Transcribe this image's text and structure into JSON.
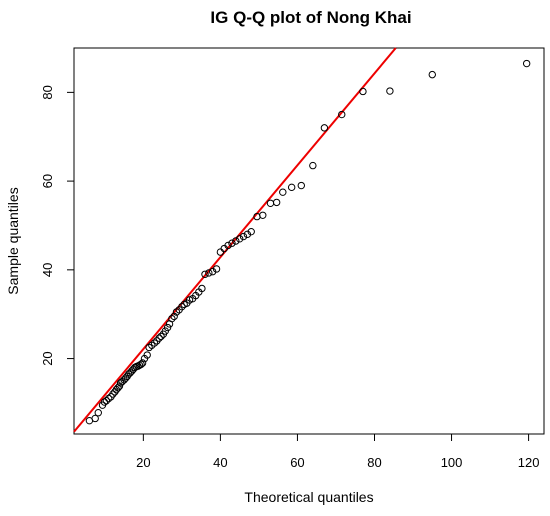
{
  "chart_data": {
    "type": "scatter",
    "title": "IG Q-Q plot of  Nong Khai",
    "xlabel": "Theoretical quantiles",
    "ylabel": "Sample quantiles",
    "xlim": [
      2,
      124
    ],
    "ylim": [
      3,
      90
    ],
    "x_ticks": [
      20,
      40,
      60,
      80,
      100,
      120
    ],
    "y_ticks": [
      20,
      40,
      60,
      80
    ],
    "grid": false,
    "legend": "none",
    "marker": "open-circle",
    "marker_color": "#000000",
    "reference_line": {
      "color": "#ee0000",
      "start": [
        2,
        3.5
      ],
      "end": [
        100,
        105
      ]
    },
    "points": [
      [
        6,
        6
      ],
      [
        7.5,
        6.5
      ],
      [
        8.3,
        7.8
      ],
      [
        9.4,
        9.5
      ],
      [
        9.9,
        10.2
      ],
      [
        10.4,
        10.5
      ],
      [
        11.0,
        11.0
      ],
      [
        11.6,
        11.4
      ],
      [
        12.1,
        12.0
      ],
      [
        12.6,
        12.5
      ],
      [
        13.0,
        13.0
      ],
      [
        13.4,
        13.4
      ],
      [
        13.8,
        13.8
      ],
      [
        14.1,
        14.5
      ],
      [
        14.5,
        14.8
      ],
      [
        15.0,
        15.2
      ],
      [
        15.4,
        15.6
      ],
      [
        15.8,
        16.0
      ],
      [
        16.2,
        16.5
      ],
      [
        16.6,
        16.8
      ],
      [
        17.0,
        17.2
      ],
      [
        17.4,
        17.6
      ],
      [
        17.8,
        18.0
      ],
      [
        18.2,
        18.2
      ],
      [
        18.6,
        18.3
      ],
      [
        19.0,
        18.5
      ],
      [
        19.4,
        18.7
      ],
      [
        19.8,
        19.0
      ],
      [
        20.3,
        20.0
      ],
      [
        21.0,
        20.8
      ],
      [
        21.5,
        22.5
      ],
      [
        22.2,
        23.0
      ],
      [
        22.9,
        23.5
      ],
      [
        23.5,
        24.0
      ],
      [
        24.1,
        24.6
      ],
      [
        24.6,
        25.0
      ],
      [
        25.2,
        25.5
      ],
      [
        25.7,
        26.2
      ],
      [
        26.3,
        27.0
      ],
      [
        26.8,
        27.8
      ],
      [
        27.4,
        29.0
      ],
      [
        28.0,
        29.5
      ],
      [
        28.6,
        30.5
      ],
      [
        29.3,
        31.0
      ],
      [
        30.0,
        31.7
      ],
      [
        30.6,
        32.2
      ],
      [
        31.3,
        32.5
      ],
      [
        32.0,
        33.2
      ],
      [
        32.8,
        33.5
      ],
      [
        33.6,
        34.2
      ],
      [
        34.4,
        35.0
      ],
      [
        35.2,
        35.8
      ],
      [
        36.0,
        39.0
      ],
      [
        37.0,
        39.3
      ],
      [
        38.0,
        39.6
      ],
      [
        39.0,
        40.2
      ],
      [
        40.0,
        44.0
      ],
      [
        41.0,
        44.8
      ],
      [
        42.0,
        45.5
      ],
      [
        43.0,
        46.0
      ],
      [
        44.0,
        46.5
      ],
      [
        45.0,
        47.0
      ],
      [
        46.0,
        47.5
      ],
      [
        47.0,
        48.0
      ],
      [
        48.0,
        48.6
      ],
      [
        49.5,
        52.0
      ],
      [
        51.0,
        52.3
      ],
      [
        53.0,
        55.0
      ],
      [
        54.6,
        55.2
      ],
      [
        56.2,
        57.5
      ],
      [
        58.5,
        58.6
      ],
      [
        61.0,
        59.0
      ],
      [
        64.0,
        63.5
      ],
      [
        67.0,
        72.0
      ],
      [
        71.5,
        75.0
      ],
      [
        77.0,
        80.2
      ],
      [
        84.0,
        80.3
      ],
      [
        95.0,
        84.0
      ],
      [
        119.5,
        86.5
      ]
    ]
  }
}
